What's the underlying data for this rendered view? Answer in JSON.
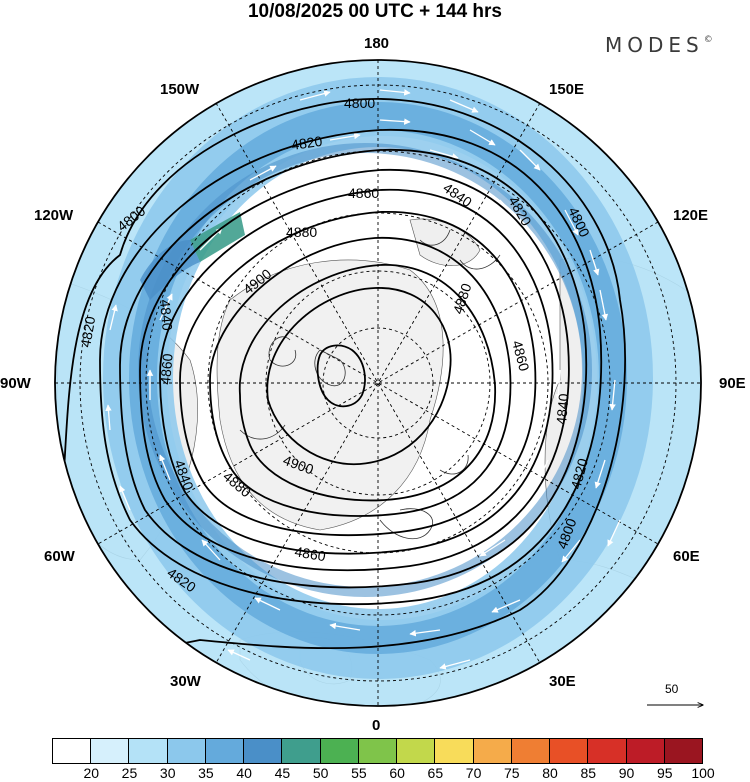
{
  "header": {
    "title": "10/08/2025  00 UTC  + 144 hrs",
    "brand": "MODES",
    "brand_mark": "©"
  },
  "map": {
    "projection": "north polar stereographic",
    "longitude_labels": {
      "top": "180",
      "top_right": "150E",
      "right_upper": "120E",
      "right": "90E",
      "right_lower": "60E",
      "bottom_right": "30E",
      "bottom": "0",
      "bottom_left": "30W",
      "left_lower": "60W",
      "left": "90W",
      "left_upper": "120W",
      "top_left": "150W"
    },
    "contour_labels": [
      "4800",
      "4820",
      "4840",
      "4860",
      "4880",
      "4900"
    ],
    "vector_reference": "50",
    "colors": {
      "land": "#efefef",
      "ocean": "#ffffff",
      "contour": "#000000"
    }
  },
  "colorbar": {
    "labels": [
      "20",
      "25",
      "30",
      "35",
      "40",
      "45",
      "50",
      "55",
      "60",
      "65",
      "70",
      "75",
      "80",
      "85",
      "90",
      "95",
      "100"
    ],
    "colors": [
      "#ffffff",
      "#d6f0fc",
      "#b4e2f7",
      "#8cc8ec",
      "#64aadc",
      "#4a8fc8",
      "#3f9e8d",
      "#4cb152",
      "#7fc44a",
      "#c2d84b",
      "#f8dc5a",
      "#f5ab4a",
      "#ef7e33",
      "#e85026",
      "#d73027",
      "#bd1c27",
      "#9a1520"
    ]
  }
}
